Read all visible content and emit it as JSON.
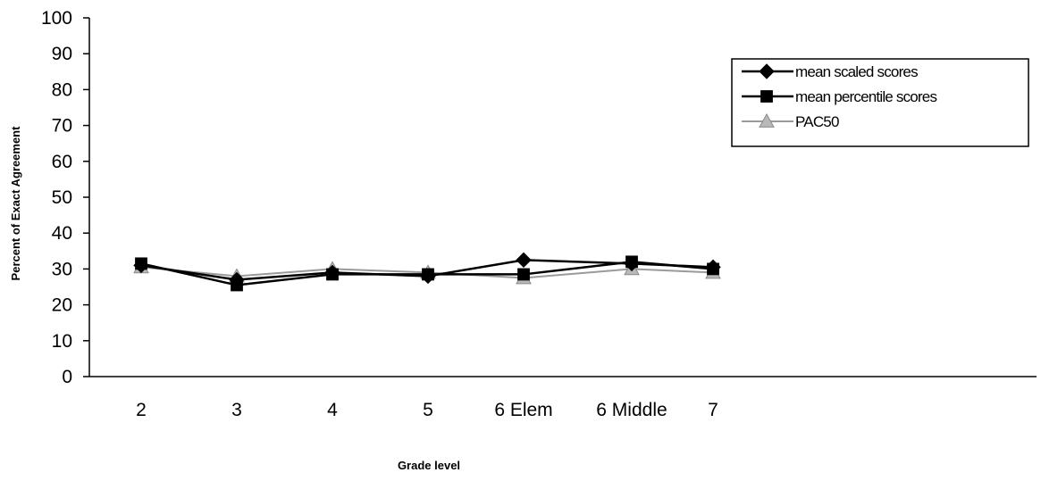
{
  "chart_data": {
    "type": "line",
    "title": "",
    "xlabel": "Grade level",
    "ylabel": "Percent  of  Exact  Agreement",
    "categories": [
      "2",
      "3",
      "4",
      "5",
      "6 Elem",
      "6  Middle",
      "7"
    ],
    "ylim": [
      0,
      100
    ],
    "yticks": [
      0,
      10,
      20,
      30,
      40,
      50,
      60,
      70,
      80,
      90,
      100
    ],
    "grid": false,
    "legend_position": "right",
    "series": [
      {
        "name": "mean scaled scores",
        "marker": "diamond",
        "color": "#000000",
        "values": [
          31,
          27,
          29,
          28,
          32.5,
          31.5,
          30.5
        ]
      },
      {
        "name": "mean percentile scores",
        "marker": "square",
        "color": "#000000",
        "values": [
          31.5,
          25.5,
          28.5,
          28.5,
          28.5,
          32,
          30
        ]
      },
      {
        "name": "PAC50",
        "marker": "triangle",
        "color": "#9a9a9a",
        "values": [
          30.5,
          28,
          30,
          29,
          27.5,
          30,
          29
        ]
      }
    ]
  }
}
